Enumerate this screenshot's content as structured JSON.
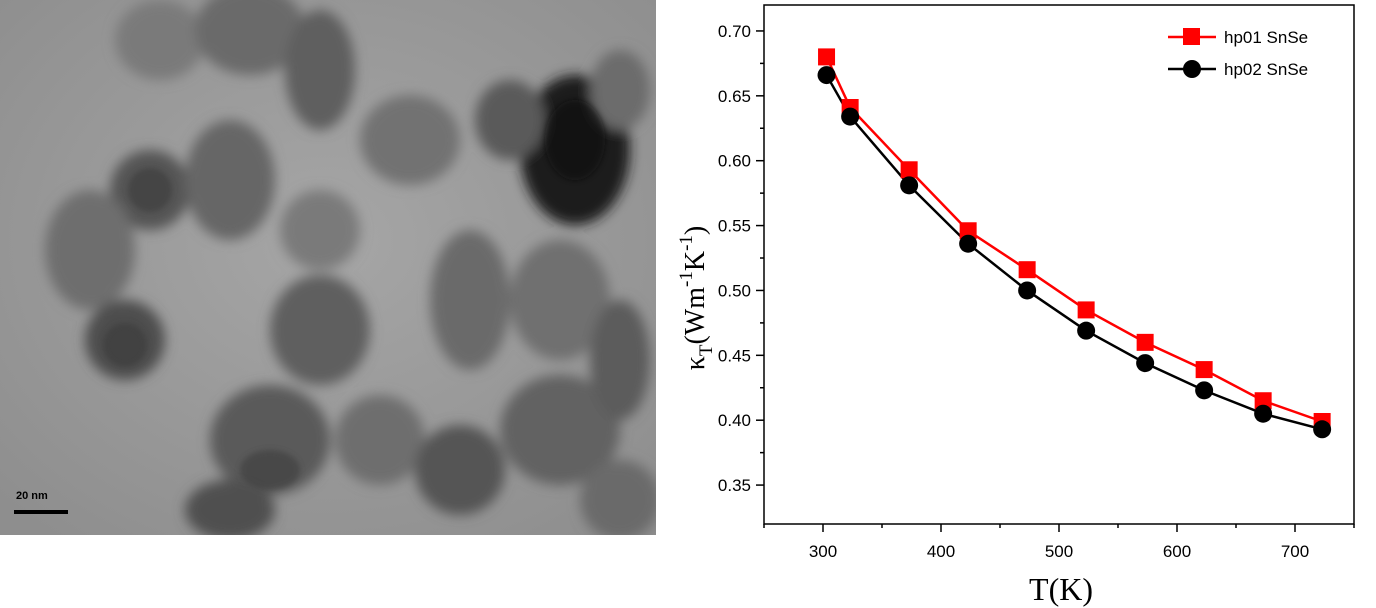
{
  "tem_image": {
    "scale_bar_label": "20 nm"
  },
  "chart_data": {
    "type": "line",
    "title": "",
    "xlabel": "T(K)",
    "ylabel": "κT(Wm-1K-1)",
    "ylabel_parts": {
      "symbol": "κ",
      "sub": "T",
      "open": "(Wm",
      "exp1": "-1",
      "mid": "K",
      "exp2": "-1",
      "close": ")"
    },
    "xlim": [
      250,
      750
    ],
    "ylim": [
      0.32,
      0.72
    ],
    "x_ticks": [
      300,
      400,
      500,
      600,
      700
    ],
    "y_ticks": [
      0.35,
      0.4,
      0.45,
      0.5,
      0.55,
      0.6,
      0.65,
      0.7
    ],
    "y_tick_labels": [
      "0.35",
      "0.40",
      "0.45",
      "0.50",
      "0.55",
      "0.60",
      "0.65",
      "0.70"
    ],
    "grid": false,
    "legend_position": "top-right",
    "series": [
      {
        "name": "hp01 SnSe",
        "color": "#ff0000",
        "marker": "square",
        "x": [
          303,
          323,
          373,
          423,
          473,
          523,
          573,
          623,
          673,
          723
        ],
        "y": [
          0.68,
          0.641,
          0.593,
          0.546,
          0.516,
          0.485,
          0.46,
          0.439,
          0.415,
          0.399
        ]
      },
      {
        "name": "hp02 SnSe",
        "color": "#000000",
        "marker": "circle",
        "x": [
          303,
          323,
          373,
          423,
          473,
          523,
          573,
          623,
          673,
          723
        ],
        "y": [
          0.666,
          0.634,
          0.581,
          0.536,
          0.5,
          0.469,
          0.444,
          0.423,
          0.405,
          0.393
        ]
      }
    ]
  }
}
